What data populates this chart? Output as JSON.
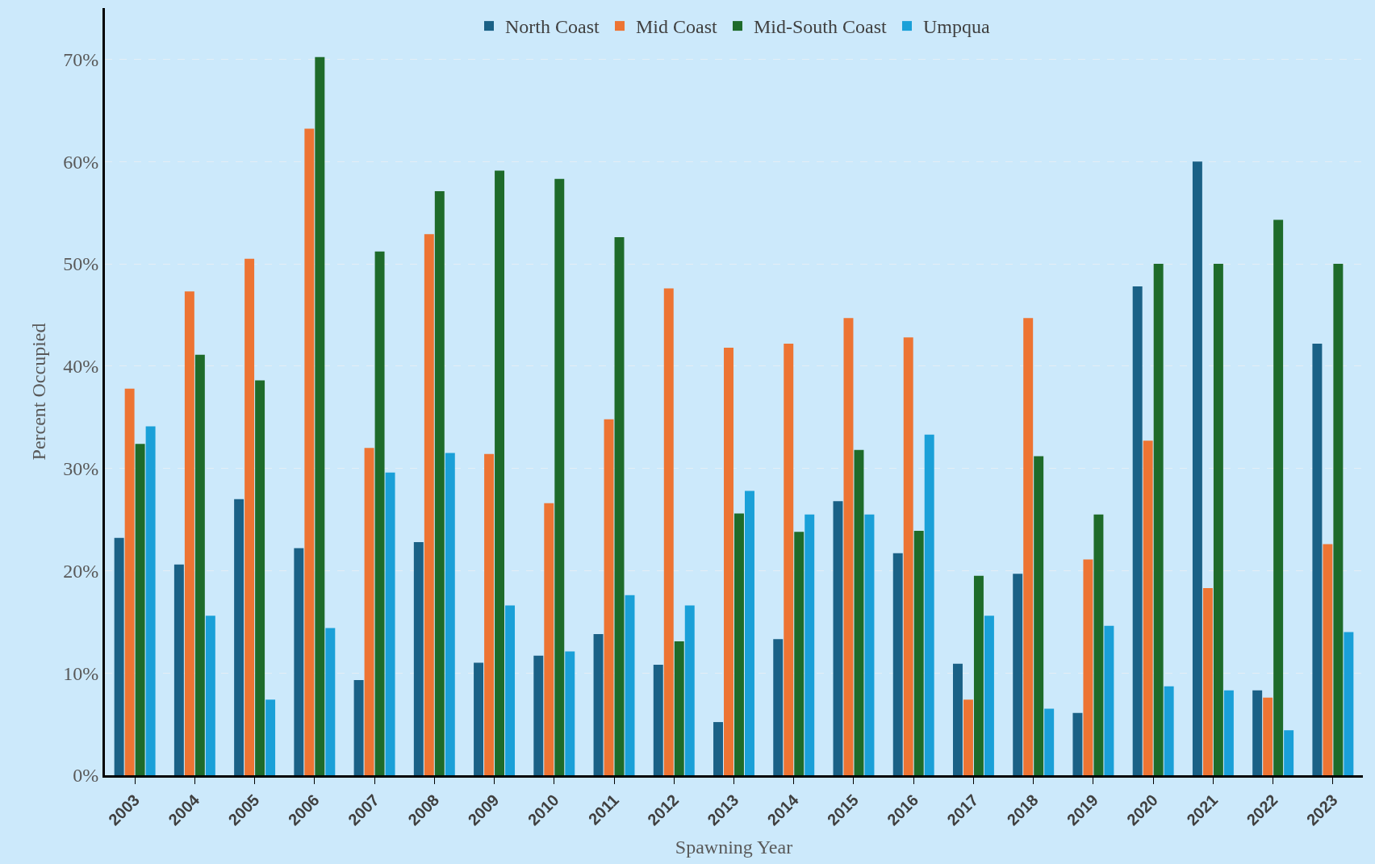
{
  "chart_data": {
    "type": "bar",
    "xlabel": "Spawning Year",
    "ylabel": "Percent Occupied",
    "categories": [
      "2003",
      "2004",
      "2005",
      "2006",
      "2007",
      "2008",
      "2009",
      "2010",
      "2011",
      "2012",
      "2013",
      "2014",
      "2015",
      "2016",
      "2017",
      "2018",
      "2019",
      "2020",
      "2021",
      "2022",
      "2023"
    ],
    "series": [
      {
        "name": "North Coast",
        "color": "#1a6186",
        "values": [
          23.2,
          20.6,
          27.0,
          22.2,
          9.3,
          22.8,
          11.0,
          11.7,
          13.8,
          10.8,
          5.2,
          13.3,
          26.8,
          21.7,
          10.9,
          19.7,
          6.1,
          47.8,
          60.0,
          8.3,
          42.2
        ]
      },
      {
        "name": "Mid Coast",
        "color": "#ed7433",
        "values": [
          37.8,
          47.3,
          50.5,
          63.2,
          32.0,
          52.9,
          31.4,
          26.6,
          34.8,
          47.6,
          41.8,
          42.2,
          44.7,
          42.8,
          7.4,
          44.7,
          21.1,
          32.7,
          18.3,
          7.6,
          22.6
        ]
      },
      {
        "name": "Mid-South Coast",
        "color": "#1e6b2a",
        "values": [
          32.4,
          41.1,
          38.6,
          70.2,
          51.2,
          57.1,
          59.1,
          58.3,
          52.6,
          13.1,
          25.6,
          23.8,
          31.8,
          23.9,
          19.5,
          31.2,
          25.5,
          50.0,
          50.0,
          54.3,
          50.0
        ]
      },
      {
        "name": "Umpqua",
        "color": "#1aa0d8",
        "values": [
          34.1,
          15.6,
          7.4,
          14.4,
          29.6,
          31.5,
          16.6,
          12.1,
          17.6,
          16.6,
          27.8,
          25.5,
          25.5,
          33.3,
          15.6,
          6.5,
          14.6,
          8.7,
          8.3,
          4.4,
          14.0
        ]
      }
    ],
    "ylim": [
      0,
      75
    ],
    "yticks": [
      {
        "value": 0,
        "label": "0%"
      },
      {
        "value": 10,
        "label": "10%"
      },
      {
        "value": 20,
        "label": "20%"
      },
      {
        "value": 30,
        "label": "30%"
      },
      {
        "value": 40,
        "label": "40%"
      },
      {
        "value": 50,
        "label": "50%"
      },
      {
        "value": 60,
        "label": "60%"
      },
      {
        "value": 70,
        "label": "70%"
      }
    ],
    "grid": "y",
    "legend": "top"
  }
}
